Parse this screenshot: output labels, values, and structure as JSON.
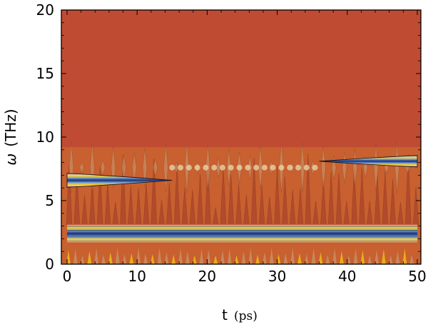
{
  "chart_data": {
    "type": "heatmap",
    "title": "",
    "xlabel": "t",
    "xlabel_unit": "(ps)",
    "ylabel_symbol": "ω",
    "ylabel_unit": "(THz)",
    "xlim": [
      0,
      50
    ],
    "ylim": [
      0,
      20
    ],
    "x_ticks": [
      0,
      10,
      20,
      30,
      40,
      50
    ],
    "y_ticks": [
      0,
      5,
      10,
      15,
      20
    ],
    "x_tick_labels": [
      "0",
      "10",
      "20",
      "30",
      "40",
      "50"
    ],
    "y_tick_labels": [
      "0",
      "5",
      "10",
      "15",
      "20"
    ],
    "grid": false,
    "background_level_color": "#c04b33",
    "colors": {
      "deep_blue": "#1f3170",
      "blue": "#3f62a8",
      "light_blue": "#8fb2d4",
      "cream": "#e8d9b0",
      "yellow": "#f0c814",
      "tan": "#c8966c",
      "orange": "#c8602f",
      "red": "#c04b33",
      "dark_red": "#9e3a28",
      "olive": "#8a7d3a"
    },
    "spectral_bands": [
      {
        "t_start": 0,
        "t_end": 50,
        "omega_center": 2.4,
        "omega_halfwidth": 0.75,
        "intensity": "high"
      },
      {
        "t_start": 0,
        "t_end": 15,
        "omega_center": 6.6,
        "omega_halfwidth": 0.55,
        "intensity": "high_decaying"
      },
      {
        "t_start": 36,
        "t_end": 50,
        "omega_center": 8.1,
        "omega_halfwidth": 0.45,
        "intensity": "high_growing"
      },
      {
        "t_start": 15,
        "t_end": 36,
        "omega_center": 7.6,
        "omega_halfwidth": 0.5,
        "intensity": "weak"
      }
    ]
  }
}
